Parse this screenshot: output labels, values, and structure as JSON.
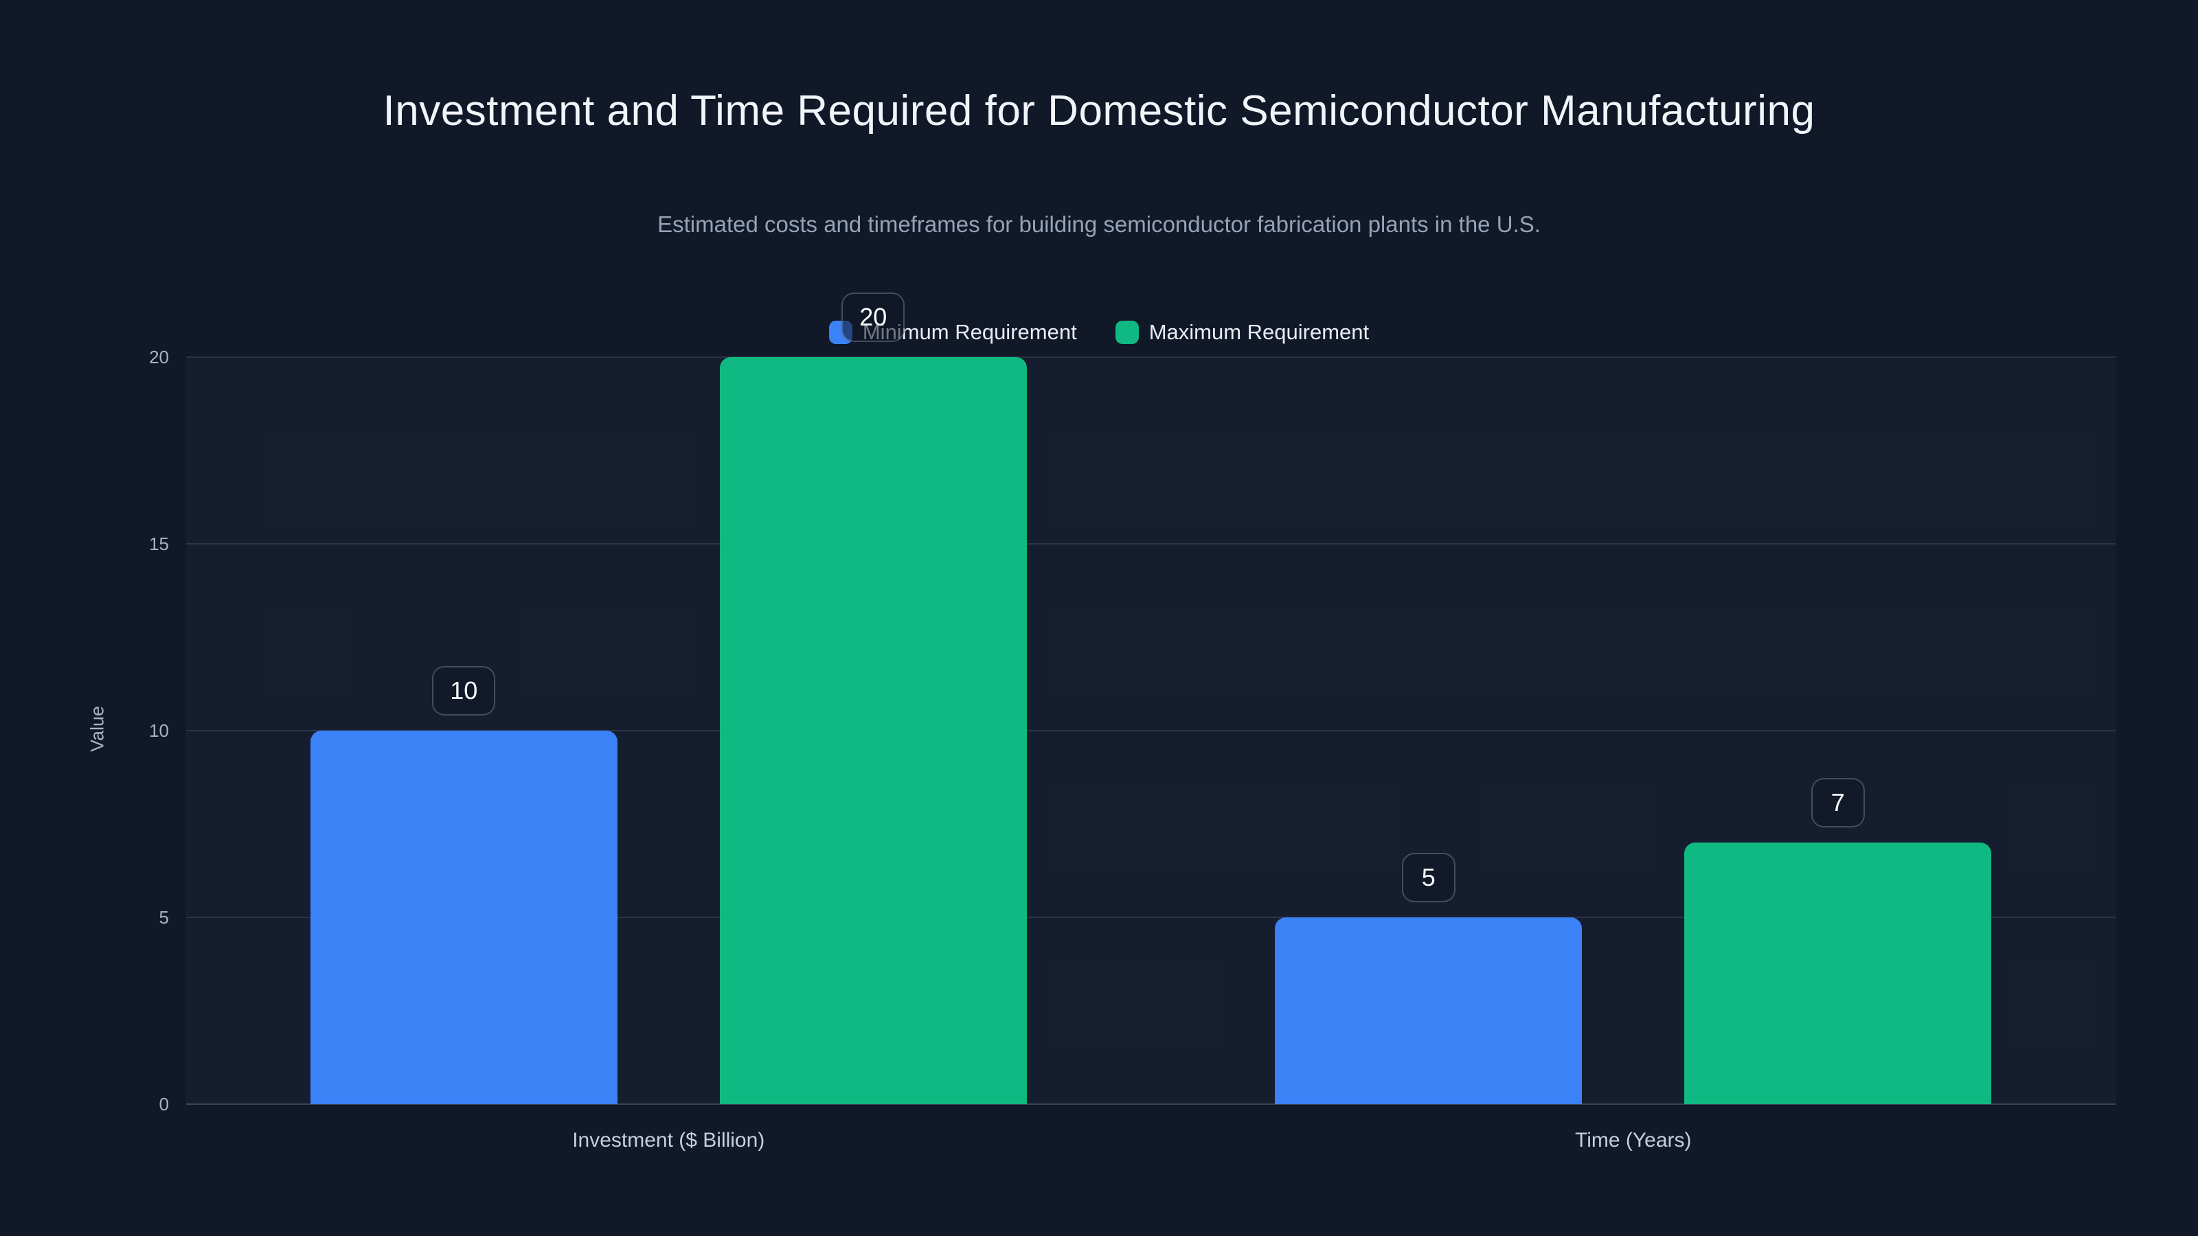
{
  "header": {
    "title": "Investment and Time Required for Domestic Semiconductor Manufacturing",
    "subtitle": "Estimated costs and timeframes for building semiconductor fabrication plants in the U.S."
  },
  "chart_data": {
    "type": "bar",
    "title": "Investment and Time Required for Domestic Semiconductor Manufacturing",
    "subtitle": "Estimated costs and timeframes for building semiconductor fabrication plants in the U.S.",
    "categories": [
      "Investment ($ Billion)",
      "Time (Years)"
    ],
    "series": [
      {
        "name": "Minimum Requirement",
        "color": "#3b82f6",
        "values": [
          10,
          5
        ]
      },
      {
        "name": "Maximum Requirement",
        "color": "#10b981",
        "values": [
          20,
          7
        ]
      }
    ],
    "value_labels": [
      "10",
      "20",
      "5",
      "7"
    ],
    "xlabel": "",
    "ylabel": "Value",
    "ylim": [
      0,
      20
    ],
    "yticks": [
      0,
      5,
      10,
      15,
      20
    ],
    "grid": true,
    "legend_position": "top-center",
    "background_color": "#111827",
    "text_color": "#f1f5f9",
    "muted_text_color": "#94a3b8"
  }
}
